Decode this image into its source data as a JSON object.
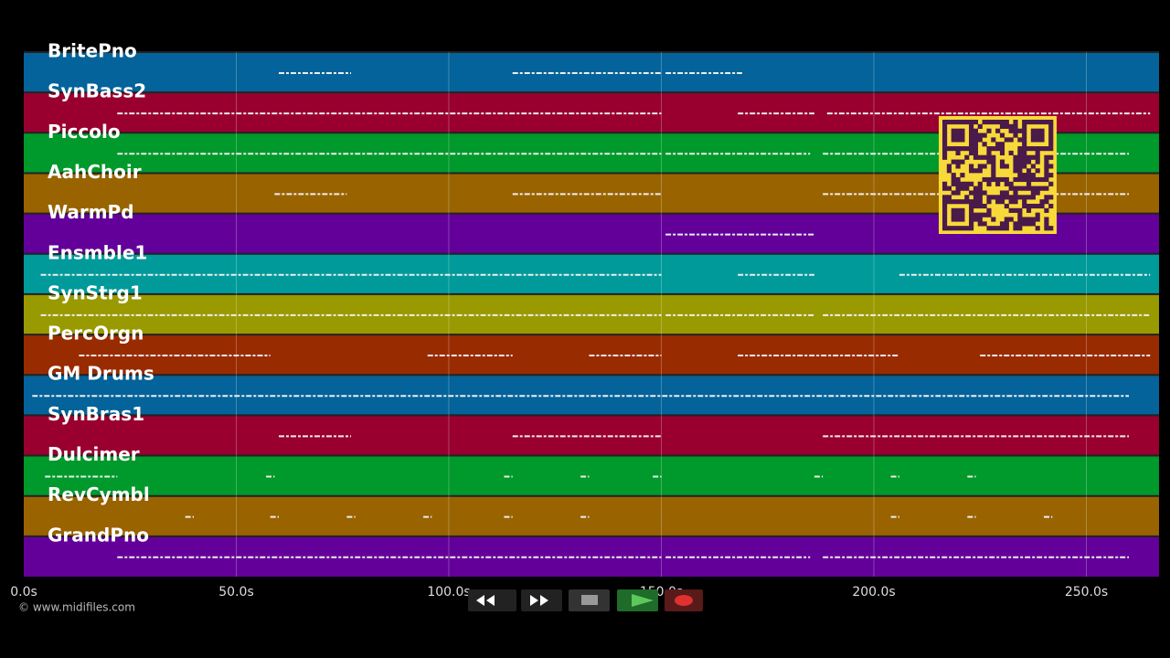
{
  "tracks": [
    "BritePno",
    "SynBass2",
    "Piccolo",
    "AahChoir",
    "WarmPd",
    "Ensmble1",
    "SynStrg1",
    "PercOrgn",
    "GM Drums",
    "SynBras1",
    "Dulcimer",
    "RevCymbl",
    "GrandPno"
  ],
  "time_axis": [
    "0.0s",
    "50.0s",
    "100.0s",
    "150.0s",
    "200.0s",
    "250.0s"
  ],
  "footer": {
    "copyright": "© www.midifiles.com"
  }
}
